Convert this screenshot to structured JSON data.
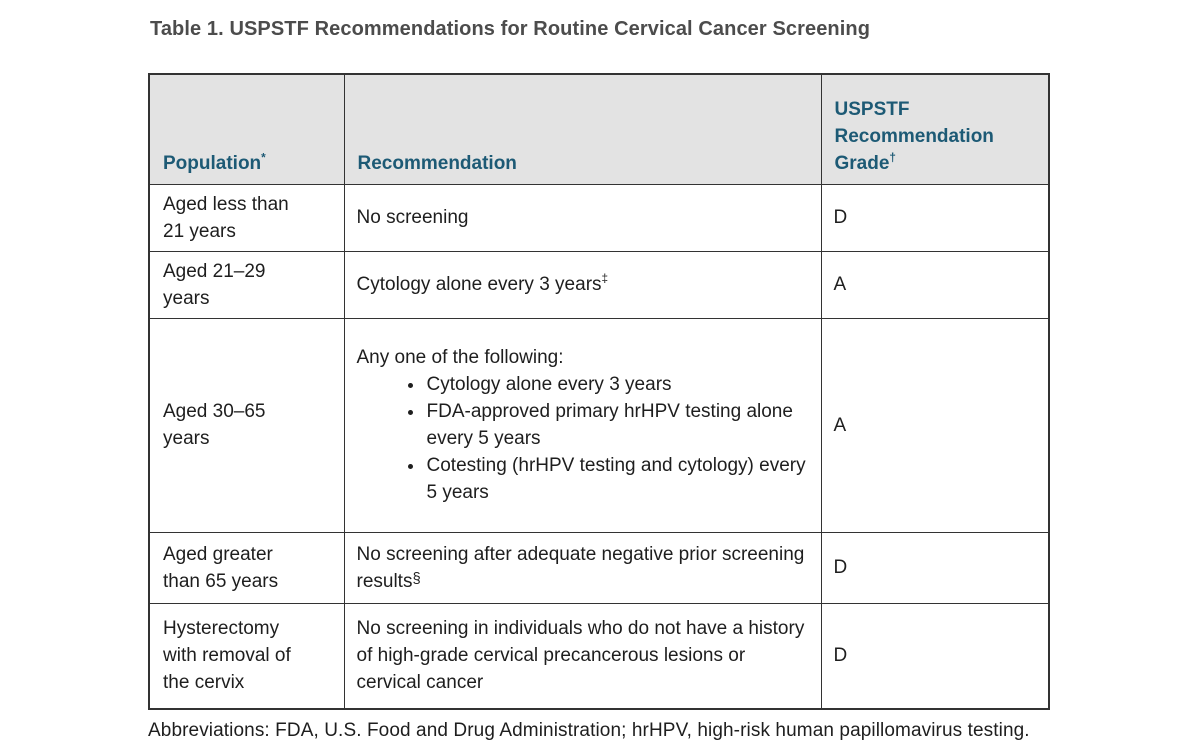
{
  "page": {
    "title": "Table 1. USPSTF Recommendations for Routine Cervical Cancer Screening",
    "footnote": "Abbreviations: FDA, U.S. Food and Drug Administration; hrHPV, high-risk human papillomavirus testing."
  },
  "table": {
    "headers": [
      {
        "label": "Population",
        "sup": "*"
      },
      {
        "label": "Recommendation",
        "sup": ""
      },
      {
        "label": "USPSTF Recommendation Grade",
        "sup": "†"
      }
    ],
    "rows": [
      {
        "population": "Aged less than 21 years",
        "recommendation": "No screening",
        "rec_sup": "",
        "grade": "D"
      },
      {
        "population": "Aged 21–29 years",
        "recommendation": "Cytology alone every 3 years",
        "rec_sup": "‡",
        "grade": "A"
      },
      {
        "population": "Aged 30–65 years",
        "rec_intro": "Any one of the following:",
        "rec_bullets": [
          "Cytology alone every 3 years",
          "FDA-approved primary hrHPV testing alone every 5 years",
          "Cotesting (hrHPV testing and cytology) every 5 years"
        ],
        "grade": "A"
      },
      {
        "population": "Aged greater than 65 years",
        "recommendation": "No screening after adequate negative prior screening results",
        "rec_sup": "§",
        "grade": "D"
      },
      {
        "population": "Hysterectomy with removal of the cervix",
        "recommendation": "No screening in individuals who do not have a history of high-grade cervical precancerous lesions or cervical cancer",
        "rec_sup": "",
        "grade": "D"
      }
    ]
  },
  "colors": {
    "header_text": "#1d5a75",
    "header_background": "#e3e3e3",
    "border": "#333333",
    "title_text": "#4c4c4c",
    "body_text": "#1e1e1e",
    "page_background": "#ffffff"
  }
}
